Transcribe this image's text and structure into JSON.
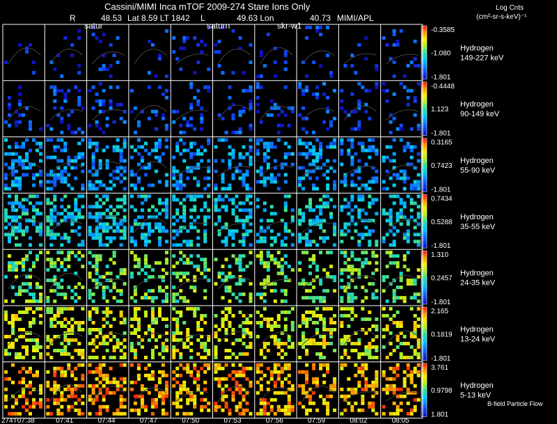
{
  "header": {
    "title": "Cassini/MIMI Inca mTOF  2009-274   Stare    Ions Only",
    "info_r_label": "R",
    "info_r_value": "48.53",
    "info_lat_lt": "Lat 8.59 LT 1842",
    "info_l_label": "L",
    "info_lon": "49.63 Lon",
    "info_extra": "40.73",
    "info_org": "MIMI/APL",
    "units_line1": "Log Cnts",
    "units_line2": "(cm²-sr-s-keV)⁻¹"
  },
  "overlay_labels": {
    "a": "satur",
    "b": "saturn",
    "c": "skr-w1"
  },
  "footer": {
    "flow_label": "B-field Particle Flow"
  },
  "chart_data": {
    "type": "heatmap",
    "title": "Cassini/MIMI Inca mTOF  2009-274   Stare    Ions Only",
    "colorbar_label": "Log Cnts (cm²-sr-s-keV)⁻¹",
    "x_ticks": [
      "274T07:38",
      "07:41",
      "07:44",
      "07:47",
      "07:50",
      "07:53",
      "07:56",
      "07:59",
      "08:02",
      "08:05"
    ],
    "rows": [
      {
        "species": "Hydrogen",
        "energy": "149-227 keV",
        "cmax": "-0.3585",
        "cmid": "-1.080",
        "cmin": "-1.801",
        "intensity": 0.08,
        "density": 0.07
      },
      {
        "species": "Hydrogen",
        "energy": "90-149 keV",
        "cmax": "-0.4448",
        "cmid": "1.123",
        "cmin": "-1.801",
        "intensity": 0.12,
        "density": 0.16
      },
      {
        "species": "Hydrogen",
        "energy": "55-90 keV",
        "cmax": "0.3165",
        "cmid": "0.7423",
        "cmin": "-1.801",
        "intensity": 0.27,
        "density": 0.32
      },
      {
        "species": "Hydrogen",
        "energy": "35-55 keV",
        "cmax": "0.7434",
        "cmid": "0.5288",
        "cmin": "-1.801",
        "intensity": 0.38,
        "density": 0.38
      },
      {
        "species": "Hydrogen",
        "energy": "24-35 keV",
        "cmax": "1.310",
        "cmid": "0.2457",
        "cmin": "-1.801",
        "intensity": 0.55,
        "density": 0.3
      },
      {
        "species": "Hydrogen",
        "energy": "13-24 keV",
        "cmax": "2.165",
        "cmid": "0.1819",
        "cmin": "-1.801",
        "intensity": 0.68,
        "density": 0.36
      },
      {
        "species": "Hydrogen",
        "energy": "5-13 keV",
        "cmax": "3.761",
        "cmid": "0.9798",
        "cmin": "1.801",
        "intensity": 0.83,
        "density": 0.4
      }
    ]
  }
}
